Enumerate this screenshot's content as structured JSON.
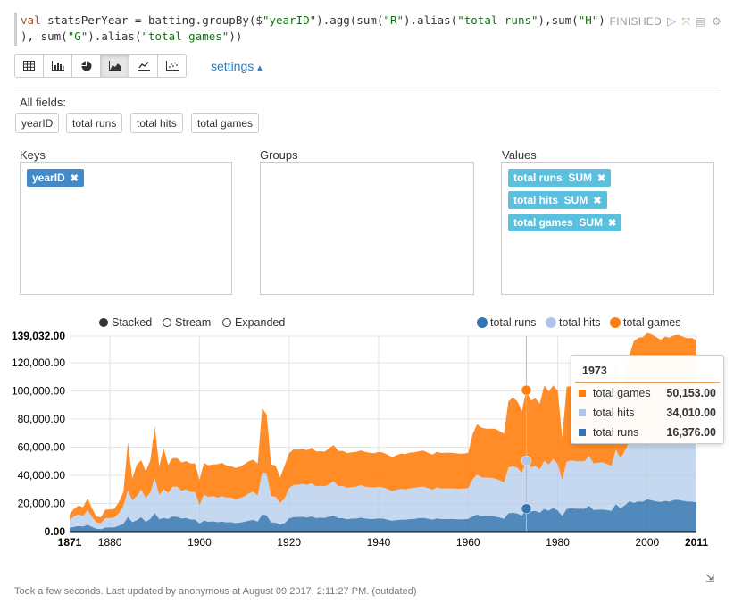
{
  "code": {
    "line1_a": "val",
    "line1_b": " statsPerYear = batting.groupBy($",
    "line1_c": "\"yearID\"",
    "line1_d": ").agg(sum(",
    "line1_e": "\"R\"",
    "line1_f": ").alias(",
    "line1_g": "\"total runs\"",
    "line1_h": "),sum(",
    "line1_i": "\"H\"",
    "line1_j": ").",
    "line2_a": "), sum(",
    "line2_b": "\"G\"",
    "line2_c": ").alias(",
    "line2_d": "\"total games\"",
    "line2_e": "))"
  },
  "paragraph": {
    "status": "FINISHED",
    "run_icon": "play-icon",
    "hide_icon": "expand-icon",
    "book_icon": "book-icon",
    "gear_icon": "gear-icon"
  },
  "toolbar": {
    "buttons": [
      "table-icon",
      "bar-chart-icon",
      "pie-chart-icon",
      "area-chart-icon",
      "line-chart-icon",
      "scatter-chart-icon"
    ],
    "active": "area-chart-icon",
    "settings_label": "settings",
    "settings_caret": "▴"
  },
  "fields": {
    "label": "All fields:",
    "items": [
      "yearID",
      "total runs",
      "total hits",
      "total games"
    ]
  },
  "pivot": {
    "keys_label": "Keys",
    "groups_label": "Groups",
    "values_label": "Values",
    "keys": [
      "yearID"
    ],
    "values": [
      "total runs  SUM",
      "total hits  SUM",
      "total games  SUM"
    ],
    "remove_glyph": "✖"
  },
  "chart_options": {
    "stacked": "Stacked",
    "stream": "Stream",
    "expanded": "Expanded",
    "selected": "Stacked"
  },
  "chart_data": {
    "type": "area",
    "stacked": true,
    "series_names": [
      "total runs",
      "total hits",
      "total games"
    ],
    "colors": {
      "total runs": "#3374b2",
      "total hits": "#aec7e8",
      "total games": "#ff7f0e"
    },
    "y_ticks": [
      "139,032.00",
      "120,000.00",
      "100,000.00",
      "80,000.00",
      "60,000.00",
      "40,000.00",
      "20,000.00",
      "0.00"
    ],
    "x_ticks": [
      "1871",
      "1880",
      "1900",
      "1920",
      "1940",
      "1960",
      "1980",
      "2000",
      "2011"
    ],
    "ylim": [
      0,
      139032
    ],
    "xlim": [
      1871,
      2011
    ],
    "grid": true,
    "legend_position": "top-right",
    "x": [
      1871,
      1872,
      1873,
      1874,
      1875,
      1876,
      1877,
      1878,
      1879,
      1880,
      1881,
      1882,
      1883,
      1884,
      1885,
      1886,
      1887,
      1888,
      1889,
      1890,
      1891,
      1892,
      1893,
      1894,
      1895,
      1896,
      1897,
      1898,
      1899,
      1900,
      1901,
      1902,
      1903,
      1904,
      1905,
      1906,
      1907,
      1908,
      1909,
      1910,
      1911,
      1912,
      1913,
      1914,
      1915,
      1916,
      1917,
      1918,
      1919,
      1920,
      1921,
      1922,
      1923,
      1924,
      1925,
      1926,
      1927,
      1928,
      1929,
      1930,
      1931,
      1932,
      1933,
      1934,
      1935,
      1936,
      1937,
      1938,
      1939,
      1940,
      1941,
      1942,
      1943,
      1944,
      1945,
      1946,
      1947,
      1948,
      1949,
      1950,
      1951,
      1952,
      1953,
      1954,
      1955,
      1956,
      1957,
      1958,
      1959,
      1960,
      1961,
      1962,
      1963,
      1964,
      1965,
      1966,
      1967,
      1968,
      1969,
      1970,
      1971,
      1972,
      1973,
      1974,
      1975,
      1976,
      1977,
      1978,
      1979,
      1980,
      1981,
      1982,
      1983,
      1984,
      1985,
      1986,
      1987,
      1988,
      1989,
      1990,
      1991,
      1992,
      1993,
      1994,
      1995,
      1996,
      1997,
      1998,
      1999,
      2000,
      2001,
      2002,
      2003,
      2004,
      2005,
      2006,
      2007,
      2008,
      2009,
      2010,
      2011
    ],
    "runs": [
      2650,
      3400,
      3900,
      3700,
      4800,
      3300,
      2000,
      1800,
      2900,
      3000,
      3100,
      4200,
      5600,
      10400,
      6700,
      8200,
      10200,
      7000,
      9100,
      13300,
      8800,
      9700,
      9000,
      10800,
      10500,
      9400,
      9700,
      8600,
      8600,
      5800,
      7900,
      7000,
      7300,
      6700,
      7100,
      6600,
      6700,
      6000,
      6400,
      7000,
      7800,
      8300,
      7100,
      12200,
      11600,
      6600,
      6400,
      5100,
      6000,
      9300,
      10300,
      10400,
      10600,
      10000,
      10800,
      9700,
      9900,
      9800,
      10700,
      11500,
      9600,
      9500,
      8800,
      9300,
      9400,
      9900,
      9300,
      9100,
      9100,
      9400,
      9300,
      8500,
      7800,
      8200,
      8500,
      8500,
      8900,
      9100,
      9600,
      9800,
      9200,
      8500,
      9400,
      8900,
      8900,
      9000,
      8900,
      8700,
      8800,
      9100,
      10900,
      12100,
      11100,
      11000,
      11000,
      10700,
      10100,
      9000,
      13000,
      13400,
      12800,
      11400,
      16376,
      14400,
      14800,
      13500,
      16200,
      14900,
      16800,
      15000,
      11200,
      16100,
      16600,
      16300,
      16300,
      16300,
      18400,
      15400,
      15600,
      15700,
      15300,
      14800,
      19500,
      16700,
      18700,
      21600,
      20500,
      21500,
      21300,
      22900,
      22300,
      21500,
      21100,
      21900,
      21300,
      22600,
      22600,
      21900,
      21400,
      21300,
      20800
    ],
    "hits": [
      5500,
      7600,
      8300,
      7500,
      10600,
      7000,
      4500,
      4200,
      6700,
      6600,
      7000,
      9000,
      12600,
      19000,
      15500,
      17000,
      19800,
      16800,
      18800,
      25000,
      17400,
      20300,
      18600,
      21200,
      21500,
      19700,
      20400,
      19600,
      19600,
      13000,
      18400,
      17600,
      17900,
      17400,
      18000,
      17600,
      17600,
      16800,
      17300,
      18000,
      19300,
      20000,
      18700,
      30000,
      29700,
      18700,
      18300,
      15300,
      17500,
      21600,
      22800,
      22900,
      23200,
      23100,
      23700,
      22500,
      22600,
      22300,
      23100,
      24200,
      22700,
      22900,
      22300,
      22400,
      22500,
      23100,
      22600,
      22400,
      22200,
      22500,
      22100,
      21700,
      21000,
      21500,
      21900,
      21600,
      21900,
      22000,
      22100,
      22300,
      21700,
      21300,
      22000,
      21800,
      21800,
      21800,
      21700,
      21700,
      21800,
      21900,
      26200,
      28500,
      27500,
      27200,
      27200,
      27000,
      26400,
      25800,
      32600,
      33100,
      32500,
      30500,
      34010,
      31300,
      31900,
      30800,
      34200,
      32800,
      34900,
      33100,
      25400,
      33500,
      34000,
      33800,
      33600,
      33700,
      35400,
      33000,
      33300,
      33600,
      32700,
      31900,
      38800,
      35500,
      38700,
      42300,
      41600,
      42600,
      42600,
      44000,
      43000,
      42200,
      41900,
      42700,
      42200,
      43000,
      43200,
      42500,
      42000,
      41700,
      41000
    ],
    "games": [
      4200,
      5300,
      6400,
      6200,
      8300,
      6200,
      4200,
      4200,
      6100,
      6100,
      6200,
      8000,
      9800,
      34300,
      15600,
      22500,
      20700,
      19100,
      22500,
      36700,
      20300,
      29300,
      19900,
      20200,
      20300,
      20100,
      20000,
      20300,
      20300,
      17800,
      22500,
      22600,
      22600,
      23800,
      23700,
      23000,
      22200,
      22500,
      22400,
      22900,
      22900,
      22900,
      22500,
      45500,
      42000,
      22600,
      22200,
      18100,
      23300,
      24800,
      25300,
      25000,
      25000,
      24800,
      25200,
      24900,
      24600,
      24800,
      25600,
      25700,
      25000,
      25000,
      24700,
      24600,
      24800,
      24700,
      24700,
      24500,
      24400,
      24800,
      24700,
      24400,
      24200,
      24600,
      25100,
      25000,
      25400,
      25300,
      25400,
      25500,
      25100,
      25000,
      25300,
      25200,
      25300,
      25300,
      25200,
      24900,
      24900,
      24900,
      32300,
      35800,
      35300,
      35000,
      35000,
      35400,
      35000,
      34800,
      47000,
      48800,
      47200,
      43800,
      50153,
      47500,
      48100,
      46600,
      53600,
      51900,
      52300,
      52000,
      30000,
      53400,
      52800,
      52900,
      52400,
      52500,
      53200,
      51100,
      51000,
      51400,
      52000,
      50800,
      61400,
      39800,
      56700,
      61500,
      73200,
      73700,
      74300,
      74300,
      74800,
      74700,
      73400,
      74100,
      74400,
      74000,
      74100,
      74100,
      74100,
      74700,
      74100
    ]
  },
  "tooltip": {
    "year": "1973",
    "rows": [
      {
        "name": "total games",
        "value": "50,153.00",
        "color": "#ff7f0e"
      },
      {
        "name": "total hits",
        "value": "34,010.00",
        "color": "#aec7e8"
      },
      {
        "name": "total runs",
        "value": "16,376.00",
        "color": "#3374b2"
      }
    ]
  },
  "resize_glyph": "⇲",
  "footer": "Took a few seconds. Last updated by anonymous at August 09 2017, 2:11:27 PM. (outdated)"
}
